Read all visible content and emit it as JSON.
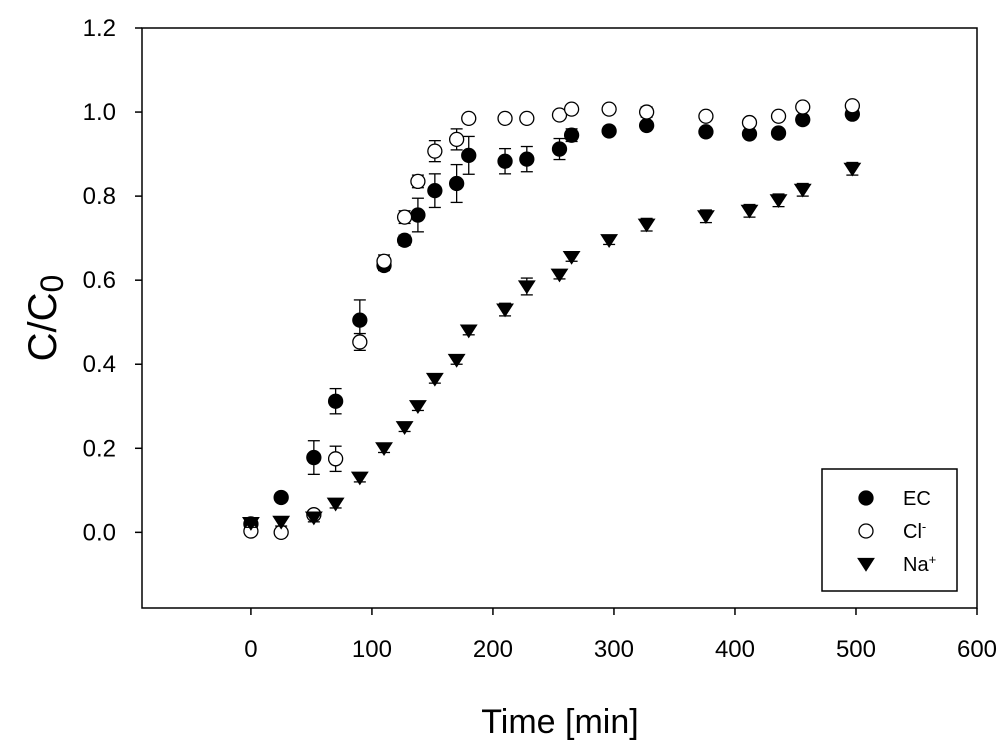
{
  "chart_data": {
    "type": "scatter",
    "xlabel": "Time [min]",
    "ylabel": {
      "base": "C/C",
      "subscript": "0"
    },
    "xlim": [
      -90,
      600
    ],
    "ylim": [
      -0.18,
      1.2
    ],
    "xticks": [
      0,
      100,
      200,
      300,
      400,
      500,
      600
    ],
    "yticks": [
      0.0,
      0.2,
      0.4,
      0.6,
      0.8,
      1.0,
      1.2
    ],
    "xtick_labels": [
      "0",
      "100",
      "200",
      "300",
      "400",
      "500",
      "600"
    ],
    "ytick_labels": [
      "0.0",
      "0.2",
      "0.4",
      "0.6",
      "0.8",
      "1.0",
      "1.2"
    ],
    "legend_position": "bottom-right",
    "series": [
      {
        "name": "EC",
        "label_base": "EC",
        "label_sup": "",
        "marker": "filled-circle",
        "points": [
          {
            "x": 0,
            "y": 0.02,
            "err": 0.005
          },
          {
            "x": 25,
            "y": 0.083,
            "err": 0.01
          },
          {
            "x": 52,
            "y": 0.178,
            "err": 0.04
          },
          {
            "x": 70,
            "y": 0.312,
            "err": 0.03
          },
          {
            "x": 90,
            "y": 0.505,
            "err": 0.048
          },
          {
            "x": 110,
            "y": 0.635,
            "err": 0.012
          },
          {
            "x": 127,
            "y": 0.695,
            "err": 0.012
          },
          {
            "x": 138,
            "y": 0.755,
            "err": 0.04
          },
          {
            "x": 152,
            "y": 0.813,
            "err": 0.04
          },
          {
            "x": 170,
            "y": 0.83,
            "err": 0.045
          },
          {
            "x": 180,
            "y": 0.897,
            "err": 0.045
          },
          {
            "x": 210,
            "y": 0.883,
            "err": 0.03
          },
          {
            "x": 228,
            "y": 0.888,
            "err": 0.03
          },
          {
            "x": 255,
            "y": 0.912,
            "err": 0.025
          },
          {
            "x": 265,
            "y": 0.945,
            "err": 0.015
          },
          {
            "x": 296,
            "y": 0.955,
            "err": 0.008
          },
          {
            "x": 327,
            "y": 0.968,
            "err": 0.008
          },
          {
            "x": 376,
            "y": 0.953,
            "err": 0.008
          },
          {
            "x": 412,
            "y": 0.948,
            "err": 0.008
          },
          {
            "x": 436,
            "y": 0.95,
            "err": 0.008
          },
          {
            "x": 456,
            "y": 0.982,
            "err": 0.01
          },
          {
            "x": 497,
            "y": 0.995,
            "err": 0.008
          }
        ]
      },
      {
        "name": "Cl-",
        "label_base": "Cl",
        "label_sup": "-",
        "marker": "open-circle",
        "points": [
          {
            "x": 0,
            "y": 0.003,
            "err": 0.005
          },
          {
            "x": 25,
            "y": 0.0,
            "err": 0.005
          },
          {
            "x": 52,
            "y": 0.042,
            "err": 0.01
          },
          {
            "x": 70,
            "y": 0.175,
            "err": 0.03
          },
          {
            "x": 90,
            "y": 0.453,
            "err": 0.02
          },
          {
            "x": 110,
            "y": 0.645,
            "err": 0.015
          },
          {
            "x": 127,
            "y": 0.75,
            "err": 0.015
          },
          {
            "x": 138,
            "y": 0.835,
            "err": 0.015
          },
          {
            "x": 152,
            "y": 0.907,
            "err": 0.025
          },
          {
            "x": 170,
            "y": 0.935,
            "err": 0.025
          },
          {
            "x": 180,
            "y": 0.985,
            "err": 0.01
          },
          {
            "x": 210,
            "y": 0.985,
            "err": 0.008
          },
          {
            "x": 228,
            "y": 0.985,
            "err": 0.008
          },
          {
            "x": 255,
            "y": 0.993,
            "err": 0.008
          },
          {
            "x": 265,
            "y": 1.007,
            "err": 0.008
          },
          {
            "x": 296,
            "y": 1.007,
            "err": 0.008
          },
          {
            "x": 327,
            "y": 1.0,
            "err": 0.012
          },
          {
            "x": 376,
            "y": 0.99,
            "err": 0.008
          },
          {
            "x": 412,
            "y": 0.975,
            "err": 0.008
          },
          {
            "x": 436,
            "y": 0.99,
            "err": 0.008
          },
          {
            "x": 456,
            "y": 1.012,
            "err": 0.008
          },
          {
            "x": 497,
            "y": 1.015,
            "err": 0.008
          }
        ]
      },
      {
        "name": "Na+",
        "label_base": "Na",
        "label_sup": "+",
        "marker": "filled-triangle-down",
        "points": [
          {
            "x": 0,
            "y": 0.022,
            "err": 0.01
          },
          {
            "x": 25,
            "y": 0.025,
            "err": 0.01
          },
          {
            "x": 52,
            "y": 0.035,
            "err": 0.01
          },
          {
            "x": 70,
            "y": 0.068,
            "err": 0.01
          },
          {
            "x": 90,
            "y": 0.13,
            "err": 0.01
          },
          {
            "x": 110,
            "y": 0.2,
            "err": 0.01
          },
          {
            "x": 127,
            "y": 0.25,
            "err": 0.01
          },
          {
            "x": 138,
            "y": 0.3,
            "err": 0.01
          },
          {
            "x": 152,
            "y": 0.365,
            "err": 0.01
          },
          {
            "x": 170,
            "y": 0.41,
            "err": 0.01
          },
          {
            "x": 180,
            "y": 0.48,
            "err": 0.01
          },
          {
            "x": 210,
            "y": 0.53,
            "err": 0.015
          },
          {
            "x": 228,
            "y": 0.585,
            "err": 0.02
          },
          {
            "x": 255,
            "y": 0.613,
            "err": 0.01
          },
          {
            "x": 265,
            "y": 0.655,
            "err": 0.01
          },
          {
            "x": 296,
            "y": 0.695,
            "err": 0.01
          },
          {
            "x": 327,
            "y": 0.732,
            "err": 0.015
          },
          {
            "x": 376,
            "y": 0.752,
            "err": 0.015
          },
          {
            "x": 412,
            "y": 0.765,
            "err": 0.015
          },
          {
            "x": 436,
            "y": 0.79,
            "err": 0.015
          },
          {
            "x": 456,
            "y": 0.815,
            "err": 0.015
          },
          {
            "x": 497,
            "y": 0.865,
            "err": 0.015
          }
        ]
      }
    ]
  }
}
